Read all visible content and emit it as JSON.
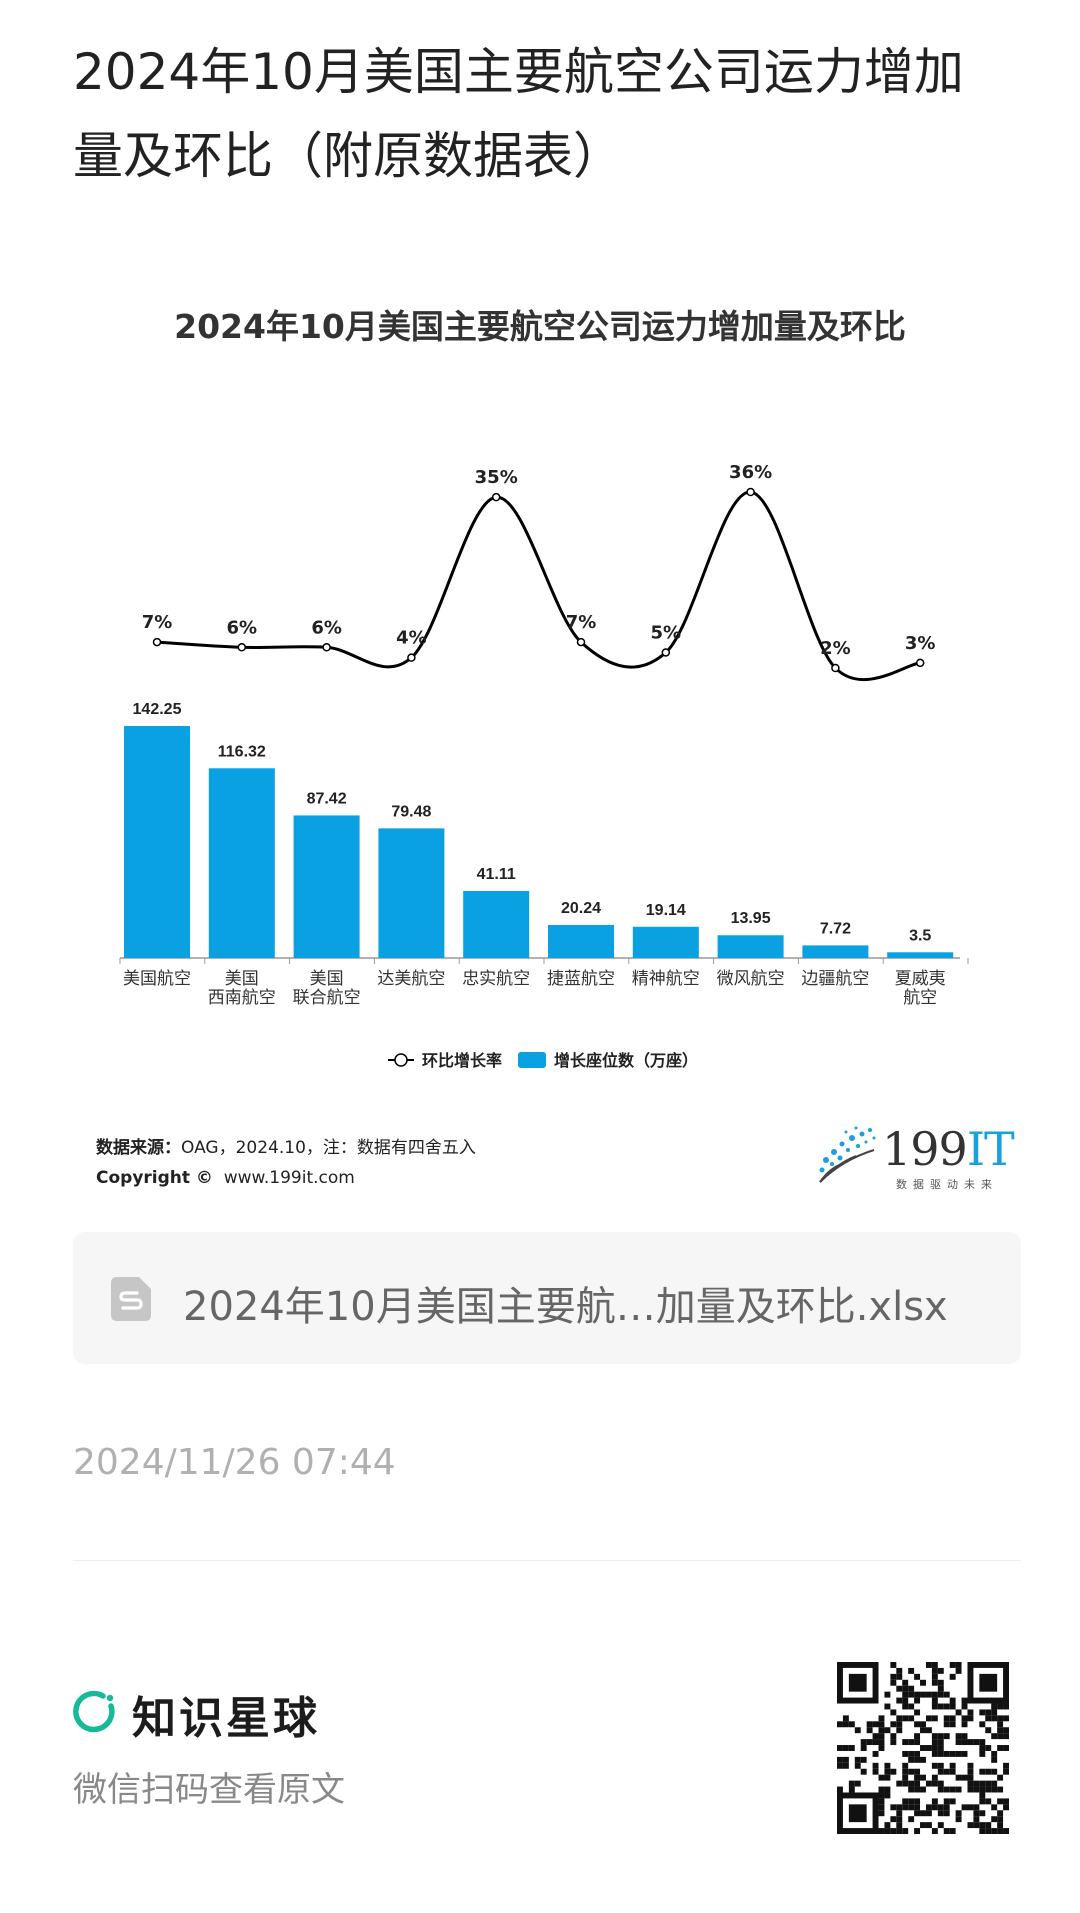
{
  "post": {
    "title": "2024年10月美国主要航空公司运力增加量及环比（附原数据表）"
  },
  "chart_data": {
    "type": "bar",
    "title": "2024年10月美国主要航空公司运力增加量及环比",
    "categories": [
      "美国航空",
      "美国\n西南航空",
      "美国\n联合航空",
      "达美航空",
      "忠实航空",
      "捷蓝航空",
      "精神航空",
      "微风航空",
      "边疆航空",
      "夏威夷\n航空"
    ],
    "series": [
      {
        "name": "增长座位数（万座）",
        "type": "bar",
        "color": "#0aa1e3",
        "values": [
          142.25,
          116.32,
          87.42,
          79.48,
          41.11,
          20.24,
          19.14,
          13.95,
          7.72,
          3.5
        ],
        "labels": [
          "142.25",
          "116.32",
          "87.42",
          "79.48",
          "41.11",
          "20.24",
          "19.14",
          "13.95",
          "7.72",
          "3.5"
        ]
      },
      {
        "name": "环比增长率",
        "type": "line",
        "color": "#000000",
        "values": [
          7,
          6,
          6,
          4,
          35,
          7,
          5,
          36,
          2,
          3
        ],
        "labels": [
          "7%",
          "6%",
          "6%",
          "4%",
          "35%",
          "7%",
          "5%",
          "36%",
          "2%",
          "3%"
        ]
      }
    ],
    "legend": "bottom",
    "grid": false
  },
  "source": {
    "label": "数据来源：",
    "text": "OAG，2024.10，注：数据有四舍五入",
    "copyright_label": "Copyright ©",
    "copyright_url": "www.199it.com"
  },
  "brand": {
    "name_main": "199",
    "name_accent": "IT",
    "slogan": "数据驱动未来"
  },
  "attachment": {
    "file_name": "2024年10月美国主要航…加量及环比.xlsx",
    "icon": "spreadsheet-file-icon"
  },
  "timestamp": "2024/11/26 07:44",
  "footer": {
    "app_name": "知识星球",
    "hint": "微信扫码查看原文",
    "logo_color": "#16b998"
  }
}
